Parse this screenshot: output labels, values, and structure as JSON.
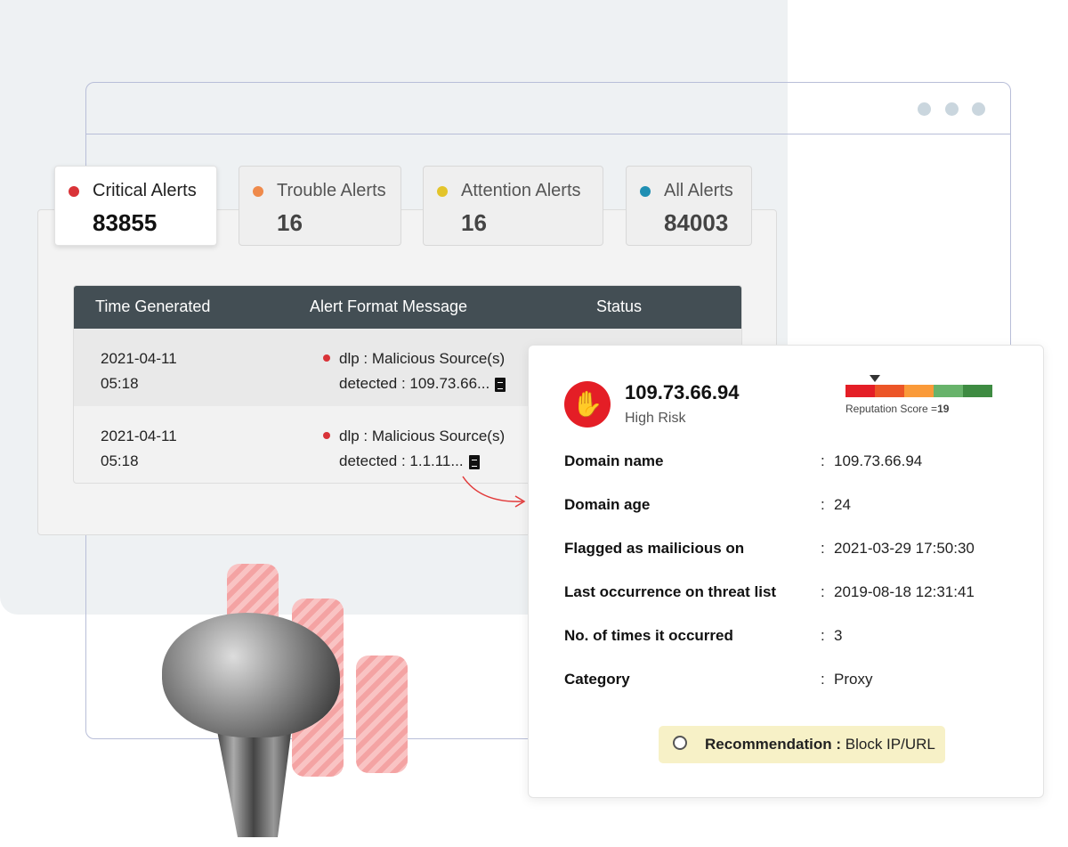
{
  "tabs": [
    {
      "label": "Critical Alerts",
      "count": "83855",
      "color": "#d93338"
    },
    {
      "label": "Trouble Alerts",
      "count": "16",
      "color": "#ef8a4b"
    },
    {
      "label": "Attention Alerts",
      "count": "16",
      "color": "#e3c42a"
    },
    {
      "label": "All Alerts",
      "count": "84003",
      "color": "#1f8fb3"
    }
  ],
  "table": {
    "headers": [
      "Time Generated",
      "Alert Format Message",
      "Status"
    ],
    "rows": [
      {
        "date": "2021-04-11",
        "time": "05:18",
        "msg1": "dlp : Malicious Source(s)",
        "msg2": "detected : 109.73.66..."
      },
      {
        "date": "2021-04-11",
        "time": "05:18",
        "msg1": "dlp : Malicious Source(s)",
        "msg2": "detected : 1.1.11..."
      }
    ]
  },
  "detail": {
    "ip": "109.73.66.94",
    "risk": "High Risk",
    "reputation_label": "Reputation Score =",
    "reputation_score": "19",
    "reputation_colors": [
      "#e41e26",
      "#ec5527",
      "#fa9a39",
      "#68b36b",
      "#3e8b42"
    ],
    "fields": [
      {
        "key": "Domain name",
        "value": "109.73.66.94"
      },
      {
        "key": "Domain age",
        "value": "24"
      },
      {
        "key": "Flagged as mailicious on",
        "value": "2021-03-29 17:50:30"
      },
      {
        "key": "Last occurrence on threat list",
        "value": "2019-08-18 12:31:41"
      },
      {
        "key": "No. of times it occurred",
        "value": "3"
      },
      {
        "key": "Category",
        "value": "Proxy"
      }
    ],
    "separator": ":",
    "recommendation_label": "Recommendation :",
    "recommendation_value": "Block IP/URL"
  }
}
